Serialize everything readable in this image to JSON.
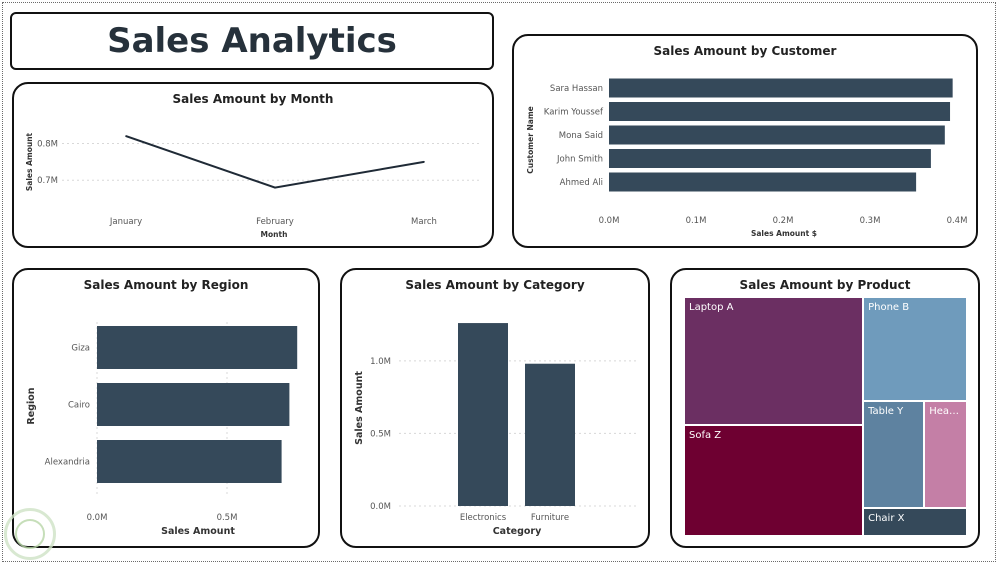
{
  "dashboard_title": "Sales Analytics",
  "colors": {
    "bar": "#35495a",
    "line": "#1f2a36"
  },
  "chart_data": [
    {
      "id": "month",
      "type": "line",
      "title": "Sales Amount by Month",
      "xlabel": "Month",
      "ylabel": "Sales Amount",
      "categories": [
        "January",
        "February",
        "March"
      ],
      "values": [
        0.82,
        0.68,
        0.75
      ],
      "ylim": [
        0.63,
        0.88
      ],
      "yticks": [
        0.7,
        0.8
      ],
      "ytick_labels": [
        "0.7M",
        "0.8M"
      ],
      "grid": true
    },
    {
      "id": "customer",
      "type": "bar",
      "orientation": "horizontal",
      "title": "Sales Amount by Customer",
      "xlabel": "Sales Amount $",
      "ylabel": "Customer Name",
      "categories": [
        "Sara Hassan",
        "Karim Youssef",
        "Mona Said",
        "John Smith",
        "Ahmed Ali"
      ],
      "values": [
        0.395,
        0.392,
        0.386,
        0.37,
        0.353
      ],
      "xlim": [
        0,
        0.4
      ],
      "xticks": [
        0,
        0.1,
        0.2,
        0.3,
        0.4
      ],
      "xtick_labels": [
        "0.0M",
        "0.1M",
        "0.2M",
        "0.3M",
        "0.4M"
      ]
    },
    {
      "id": "region",
      "type": "bar",
      "orientation": "horizontal",
      "title": "Sales Amount by Region",
      "xlabel": "Sales Amount",
      "ylabel": "Region",
      "categories": [
        "Giza",
        "Cairo",
        "Alexandria"
      ],
      "values": [
        0.77,
        0.74,
        0.71
      ],
      "xlim": [
        0,
        0.8
      ],
      "xticks": [
        0,
        0.5
      ],
      "xtick_labels": [
        "0.0M",
        "0.5M"
      ],
      "grid": true
    },
    {
      "id": "category",
      "type": "bar",
      "orientation": "vertical",
      "title": "Sales Amount by Category",
      "xlabel": "Category",
      "ylabel": "Sales Amount",
      "categories": [
        "Electronics",
        "Furniture"
      ],
      "values": [
        1.26,
        0.98
      ],
      "ylim": [
        0,
        1.35
      ],
      "yticks": [
        0,
        0.5,
        1.0
      ],
      "ytick_labels": [
        "0.0M",
        "0.5M",
        "1.0M"
      ],
      "grid": true
    },
    {
      "id": "product",
      "type": "treemap",
      "title": "Sales Amount by Product",
      "items": [
        {
          "name": "Laptop A",
          "value": 0.7,
          "color": "#6b2f62"
        },
        {
          "name": "Sofa Z",
          "value": 0.61,
          "color": "#6e0031"
        },
        {
          "name": "Phone B",
          "value": 0.33,
          "color": "#6f9bbc"
        },
        {
          "name": "Table Y",
          "value": 0.2,
          "color": "#5e82a0"
        },
        {
          "name": "Headp...",
          "value": 0.14,
          "color": "#c47fa6"
        },
        {
          "name": "Chair X",
          "value": 0.09,
          "color": "#35495a"
        }
      ]
    }
  ]
}
